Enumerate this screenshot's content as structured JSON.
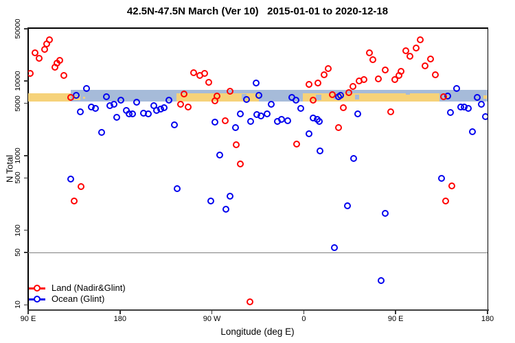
{
  "chart_data": {
    "type": "scatter",
    "title": "42.5N-47.5N March (Ver 10)   2015-01-01 to 2020-12-18",
    "xlabel": "Longitude (deg E)",
    "ylabel": "N Total",
    "x_axis": {
      "min": 90,
      "max": 540,
      "note": "longitude axis wraps eastward: 90E, 180, 90W, 0, 90E, 180",
      "ticks": [
        {
          "x": 90,
          "label": "90 E"
        },
        {
          "x": 180,
          "label": "180"
        },
        {
          "x": 270,
          "label": "90 W"
        },
        {
          "x": 360,
          "label": "0"
        },
        {
          "x": 450,
          "label": "90 E"
        },
        {
          "x": 540,
          "label": "180"
        }
      ]
    },
    "y_axis": {
      "scale": "log",
      "min": 8.5,
      "max": 52000,
      "ticks": [
        {
          "v": 50000,
          "label": "50000"
        },
        {
          "v": 10000,
          "label": "10000"
        },
        {
          "v": 5000,
          "label": "5000"
        },
        {
          "v": 1000,
          "label": "1000"
        },
        {
          "v": 500,
          "label": "500"
        },
        {
          "v": 100,
          "label": "100"
        },
        {
          "v": 50,
          "label": "50"
        },
        {
          "v": 10,
          "label": "10"
        }
      ]
    },
    "reference_line": {
      "value": 50,
      "color": "#7f7f7f"
    },
    "bands": {
      "blue_band": {
        "x": [
          132,
          540
        ],
        "n": [
          5300,
          7600
        ],
        "color": "#a6bbd9"
      },
      "yellow_n": [
        5290,
        6800
      ],
      "yellow_color": "#f6d27a",
      "yellow_segments": [
        [
          90,
          132
        ],
        [
          235,
          316
        ],
        [
          359,
          493
        ]
      ],
      "marks": [
        {
          "color": "#f6d27a",
          "x": [
            135,
            141
          ],
          "n": [
            5500,
            6300
          ]
        },
        {
          "color": "#f6d27a",
          "x": [
            143.5,
            146
          ],
          "n": [
            5700,
            6100
          ]
        },
        {
          "color": "#a6bbd9",
          "x": [
            299,
            304
          ],
          "n": [
            5600,
            6700
          ]
        },
        {
          "color": "#a6bbd9",
          "x": [
            372,
            377
          ],
          "n": [
            5500,
            6600
          ]
        },
        {
          "color": "#a6bbd9",
          "x": [
            389,
            393
          ],
          "n": [
            5600,
            6500
          ]
        },
        {
          "color": "#a6bbd9",
          "x": [
            410,
            414
          ],
          "n": [
            5600,
            6600
          ]
        },
        {
          "color": "#a6bbd9",
          "x": [
            460,
            464
          ],
          "n": [
            6600,
            7300
          ]
        },
        {
          "color": "#f6d27a",
          "x": [
            497,
            502
          ],
          "n": [
            5600,
            6300
          ]
        },
        {
          "color": "#f6d27a",
          "x": [
            536,
            539
          ],
          "n": [
            5700,
            6400
          ]
        }
      ]
    },
    "series": [
      {
        "name": "Ocean (Glint)",
        "color": "#0000ee",
        "points": [
          [
            137,
            6430
          ],
          [
            141,
            3880
          ],
          [
            147,
            7940
          ],
          [
            152,
            4500
          ],
          [
            156,
            4310
          ],
          [
            162,
            2020
          ],
          [
            167,
            6170
          ],
          [
            170,
            4690
          ],
          [
            174,
            4890
          ],
          [
            177,
            3280
          ],
          [
            181,
            5550
          ],
          [
            186,
            4050
          ],
          [
            189,
            3650
          ],
          [
            192,
            3650
          ],
          [
            196,
            5210
          ],
          [
            132,
            484
          ],
          [
            236,
            361
          ],
          [
            203,
            3720
          ],
          [
            208,
            3650
          ],
          [
            213,
            4690
          ],
          [
            216,
            4050
          ],
          [
            220,
            4220
          ],
          [
            223,
            4400
          ],
          [
            228,
            5550
          ],
          [
            233,
            2600
          ],
          [
            269,
            247
          ],
          [
            273,
            2830
          ],
          [
            278,
            1010
          ],
          [
            284,
            192
          ],
          [
            288,
            286
          ],
          [
            293,
            2390
          ],
          [
            298,
            3650
          ],
          [
            304,
            5670
          ],
          [
            308,
            2890
          ],
          [
            313,
            9390
          ],
          [
            314,
            3570
          ],
          [
            316,
            6430
          ],
          [
            318,
            3420
          ],
          [
            324,
            3650
          ],
          [
            328,
            4890
          ],
          [
            334,
            2890
          ],
          [
            338,
            3020
          ],
          [
            344,
            2950
          ],
          [
            348,
            6040
          ],
          [
            352,
            5550
          ],
          [
            357,
            4310
          ],
          [
            365,
            1940
          ],
          [
            369,
            3210
          ],
          [
            373,
            3020
          ],
          [
            375,
            2890
          ],
          [
            376,
            1150
          ],
          [
            390,
            58
          ],
          [
            394,
            6170
          ],
          [
            396,
            6430
          ],
          [
            403,
            213
          ],
          [
            409,
            910
          ],
          [
            413,
            3650
          ],
          [
            436,
            21
          ],
          [
            440,
            169
          ],
          [
            495,
            494
          ],
          [
            501,
            6300
          ],
          [
            504,
            3800
          ],
          [
            510,
            7940
          ],
          [
            514,
            4500
          ],
          [
            517,
            4500
          ],
          [
            521,
            4310
          ],
          [
            525,
            2070
          ],
          [
            530,
            6040
          ],
          [
            534,
            4890
          ],
          [
            538,
            3350
          ]
        ]
      },
      {
        "name": "Land (Nadir&Glint)",
        "color": "#ff0000",
        "points": [
          [
            92,
            12600
          ],
          [
            97,
            23700
          ],
          [
            101,
            20000
          ],
          [
            106,
            26300
          ],
          [
            108,
            31100
          ],
          [
            111,
            35300
          ],
          [
            116,
            15200
          ],
          [
            118,
            17300
          ],
          [
            121,
            18800
          ],
          [
            125,
            11800
          ],
          [
            132,
            6040
          ],
          [
            135,
            247
          ],
          [
            142,
            384
          ],
          [
            239,
            4890
          ],
          [
            243,
            6710
          ],
          [
            247,
            4500
          ],
          [
            252,
            12900
          ],
          [
            258,
            11800
          ],
          [
            263,
            12600
          ],
          [
            267,
            9590
          ],
          [
            273,
            5430
          ],
          [
            275,
            6300
          ],
          [
            283,
            2950
          ],
          [
            288,
            7300
          ],
          [
            294,
            1390
          ],
          [
            298,
            769
          ],
          [
            307,
            11
          ],
          [
            353,
            1410
          ],
          [
            365,
            9000
          ],
          [
            369,
            5550
          ],
          [
            374,
            9390
          ],
          [
            380,
            12100
          ],
          [
            384,
            14600
          ],
          [
            388,
            6570
          ],
          [
            394,
            2390
          ],
          [
            399,
            4400
          ],
          [
            404,
            6990
          ],
          [
            408,
            8450
          ],
          [
            414,
            10000
          ],
          [
            419,
            10400
          ],
          [
            424,
            23700
          ],
          [
            428,
            19200
          ],
          [
            433,
            10700
          ],
          [
            440,
            14000
          ],
          [
            445,
            3880
          ],
          [
            449,
            10400
          ],
          [
            453,
            11800
          ],
          [
            455,
            13400
          ],
          [
            460,
            25200
          ],
          [
            464,
            21300
          ],
          [
            470,
            27400
          ],
          [
            474,
            35300
          ],
          [
            479,
            15900
          ],
          [
            484,
            19600
          ],
          [
            489,
            12100
          ],
          [
            497,
            6170
          ],
          [
            499,
            247
          ],
          [
            505,
            392
          ]
        ]
      }
    ],
    "legend": {
      "position": "bottom-left",
      "items": [
        {
          "label": "Land (Nadir&Glint)",
          "color": "#ff0000"
        },
        {
          "label": "Ocean (Glint)",
          "color": "#0000ee"
        }
      ]
    }
  }
}
